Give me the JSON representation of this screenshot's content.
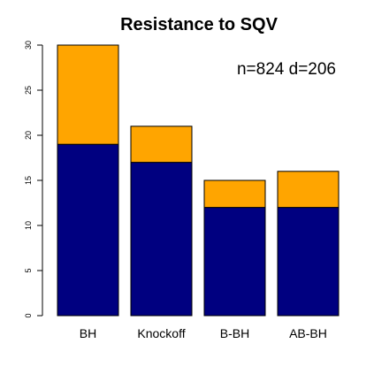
{
  "chart_data": {
    "type": "bar",
    "stacked": true,
    "title": "Resistance to SQV",
    "annotation": "n=824 d=206",
    "xlabel": "",
    "ylabel": "",
    "categories": [
      "BH",
      "Knockoff",
      "B-BH",
      "AB-BH"
    ],
    "series": [
      {
        "values": [
          19,
          17,
          12,
          12
        ],
        "color": "#000080"
      },
      {
        "values": [
          11,
          4,
          3,
          4
        ],
        "color": "#FFA500"
      }
    ],
    "ylim": [
      0,
      30
    ],
    "yticks": [
      "0",
      "5",
      "10",
      "15",
      "20",
      "25",
      "30"
    ],
    "grid": false,
    "legend": "none"
  }
}
